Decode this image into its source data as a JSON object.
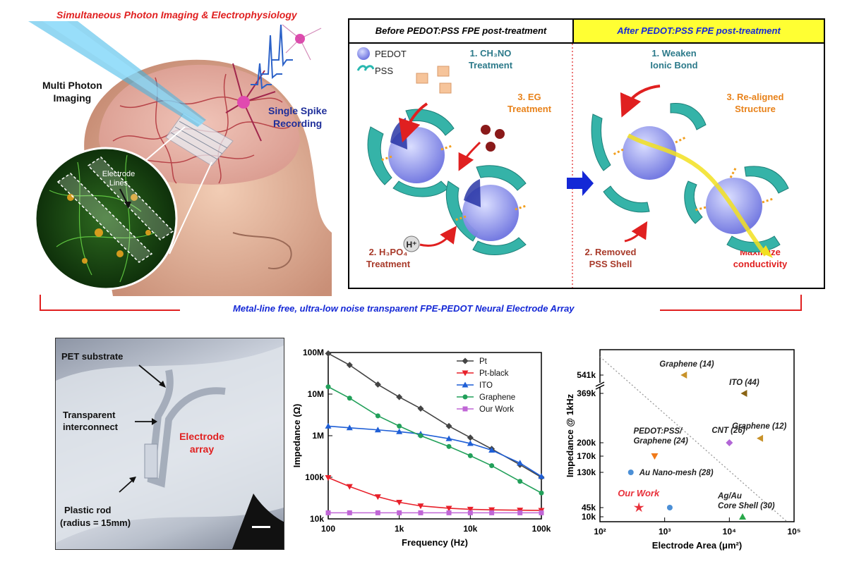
{
  "top_title": "Simultaneous Photon Imaging & Electrophysiology",
  "left_illustration": {
    "multi_photon_label": [
      "Multi Photon",
      "Imaging"
    ],
    "spike_label": [
      "Single Spike",
      "Recording"
    ],
    "electrode_lines_label": [
      "Electrode",
      "Lines"
    ]
  },
  "mechanism": {
    "before_header": "Before PEDOT:PSS FPE post-treatment",
    "after_header": "After PEDOT:PSS FPE post-treatment",
    "legend_pedot": "PEDOT",
    "legend_pss": "PSS",
    "step1_before": [
      "1. CH₃NO",
      "Treatment"
    ],
    "step3_before": [
      "3. EG",
      "Treatment"
    ],
    "step2_before": [
      "2. H₃PO₄",
      "Treatment"
    ],
    "proton_label": "H⁺",
    "step1_after": [
      "1. Weaken",
      "Ionic Bond"
    ],
    "step3_after": [
      "3. Re-aligned",
      "Structure"
    ],
    "step2_after": [
      "2. Removed",
      "PSS Shell"
    ],
    "maximize": [
      "Maximize",
      "conductivity"
    ]
  },
  "banner": "Metal-line free, ultra-low noise transparent FPE-PEDOT Neural Electrode Array",
  "photo": {
    "pet_label": "PET substrate",
    "interconnect_label": [
      "Transparent",
      "interconnect"
    ],
    "electrode_label": [
      "Electrode",
      "array"
    ],
    "rod_label": [
      "Plastic rod",
      "(radius = 15mm)"
    ]
  },
  "chart_data": [
    {
      "type": "line",
      "xlabel": "Frequency (Hz)",
      "ylabel": "Impedance (Ω)",
      "x_scale": "log",
      "y_scale": "log",
      "xlim": [
        100,
        100000
      ],
      "ylim": [
        10000,
        100000000
      ],
      "x_ticks": [
        "100",
        "1k",
        "10k",
        "100k"
      ],
      "y_ticks": [
        "10k",
        "100k",
        "1M",
        "10M",
        "100M"
      ],
      "legend_position": "top-right",
      "x": [
        100,
        200,
        500,
        1000,
        2000,
        5000,
        10000,
        20000,
        50000,
        100000
      ],
      "series": [
        {
          "name": "Pt",
          "color": "#444444",
          "marker": "diamond",
          "values": [
            95000000,
            50000000,
            17000000,
            8500000,
            4500000,
            1700000,
            900000,
            480000,
            200000,
            100000
          ]
        },
        {
          "name": "Pt-black",
          "color": "#e8202a",
          "marker": "triangle-down",
          "values": [
            98000,
            60000,
            34000,
            25000,
            20500,
            18000,
            17000,
            16500,
            16200,
            16000
          ]
        },
        {
          "name": "ITO",
          "color": "#1f5fd6",
          "marker": "triangle-up",
          "values": [
            1700000,
            1550000,
            1380000,
            1250000,
            1100000,
            850000,
            650000,
            450000,
            220000,
            105000
          ]
        },
        {
          "name": "Graphene",
          "color": "#22a05a",
          "marker": "circle",
          "values": [
            15000000,
            8000000,
            3000000,
            1700000,
            1000000,
            550000,
            330000,
            190000,
            80000,
            42000
          ]
        },
        {
          "name": "Our Work",
          "color": "#c066d6",
          "marker": "square",
          "values": [
            14000,
            14000,
            14000,
            14000,
            14000,
            14000,
            14000,
            14000,
            14000,
            14000
          ]
        }
      ]
    },
    {
      "type": "scatter",
      "xlabel": "Electrode Area  (μm²)",
      "ylabel": "Impedance @ 1kHz",
      "x_scale": "log",
      "xlim": [
        100,
        100000
      ],
      "x_ticks": [
        "10²",
        "10³",
        "10⁴",
        "10⁵"
      ],
      "y_ticks": [
        "10k",
        "45k",
        "130k",
        "170k",
        "200k",
        "369k",
        "541k"
      ],
      "y_axis_break": true,
      "reference_line": "dotted diagonal",
      "points": [
        {
          "label": "Graphene (14)",
          "x": 2000,
          "y": 541000,
          "color": "#c8922a",
          "marker": "triangle-left"
        },
        {
          "label": "ITO (44)",
          "x": 17000,
          "y": 369000,
          "color": "#8a6414",
          "marker": "triangle-left"
        },
        {
          "label": "Graphene (12)",
          "x": 30000,
          "y": 215000,
          "color": "#c8922a",
          "marker": "triangle-left"
        },
        {
          "label": "CNT (26)",
          "x": 10000,
          "y": 200000,
          "color": "#b266d6",
          "marker": "diamond"
        },
        {
          "label": "PEDOT:PSS/ Graphene (24)",
          "x": 700,
          "y": 170000,
          "color": "#f07a1a",
          "marker": "triangle-down"
        },
        {
          "label": "Au Nano-mesh (28)",
          "x": 300,
          "y": 130000,
          "color": "#4b8fd6",
          "marker": "circle"
        },
        {
          "label": "Our Work",
          "x": 400,
          "y": 45000,
          "color": "#e8303a",
          "marker": "star"
        },
        {
          "label": "",
          "x": 1200,
          "y": 45000,
          "color": "#4b8fd6",
          "marker": "hexagon"
        },
        {
          "label": "Ag/Au Core Shell (30)",
          "x": 16000,
          "y": 10000,
          "color": "#2aa84a",
          "marker": "triangle-up"
        }
      ]
    }
  ]
}
